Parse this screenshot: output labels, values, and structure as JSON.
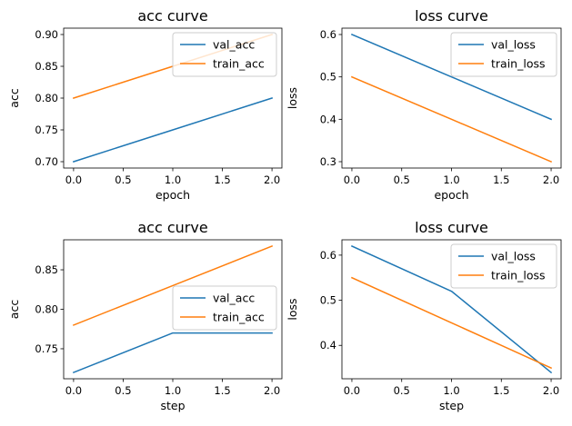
{
  "chart_data": [
    {
      "type": "line",
      "title": "acc curve",
      "xlabel": "epoch",
      "ylabel": "acc",
      "x": [
        0,
        1,
        2
      ],
      "xlim": [
        -0.1,
        2.1
      ],
      "ylim": [
        0.69,
        0.91
      ],
      "xticks": [
        0.0,
        0.5,
        1.0,
        1.5,
        2.0
      ],
      "yticks": [
        0.7,
        0.75,
        0.8,
        0.85,
        0.9
      ],
      "xtick_labels": [
        "0.0",
        "0.5",
        "1.0",
        "1.5",
        "2.0"
      ],
      "ytick_labels": [
        "0.70",
        "0.75",
        "0.80",
        "0.85",
        "0.90"
      ],
      "legend_position": "top-right",
      "grid": false,
      "series": [
        {
          "name": "val_acc",
          "color": "#1f77b4",
          "values": [
            0.7,
            0.75,
            0.8
          ]
        },
        {
          "name": "train_acc",
          "color": "#ff7f0e",
          "values": [
            0.8,
            0.85,
            0.9
          ]
        }
      ]
    },
    {
      "type": "line",
      "title": "loss curve",
      "xlabel": "epoch",
      "ylabel": "loss",
      "x": [
        0,
        1,
        2
      ],
      "xlim": [
        -0.1,
        2.1
      ],
      "ylim": [
        0.285,
        0.615
      ],
      "xticks": [
        0.0,
        0.5,
        1.0,
        1.5,
        2.0
      ],
      "yticks": [
        0.3,
        0.4,
        0.5,
        0.6
      ],
      "xtick_labels": [
        "0.0",
        "0.5",
        "1.0",
        "1.5",
        "2.0"
      ],
      "ytick_labels": [
        "0.3",
        "0.4",
        "0.5",
        "0.6"
      ],
      "legend_position": "top-right",
      "grid": false,
      "series": [
        {
          "name": "val_loss",
          "color": "#1f77b4",
          "values": [
            0.6,
            0.5,
            0.4
          ]
        },
        {
          "name": "train_loss",
          "color": "#ff7f0e",
          "values": [
            0.5,
            0.4,
            0.3
          ]
        }
      ]
    },
    {
      "type": "line",
      "title": "acc curve",
      "xlabel": "step",
      "ylabel": "acc",
      "x": [
        0,
        1,
        2
      ],
      "xlim": [
        -0.1,
        2.1
      ],
      "ylim": [
        0.712,
        0.888
      ],
      "xticks": [
        0.0,
        0.5,
        1.0,
        1.5,
        2.0
      ],
      "yticks": [
        0.75,
        0.8,
        0.85
      ],
      "xtick_labels": [
        "0.0",
        "0.5",
        "1.0",
        "1.5",
        "2.0"
      ],
      "ytick_labels": [
        "0.75",
        "0.80",
        "0.85"
      ],
      "legend_position": "center-right",
      "grid": false,
      "series": [
        {
          "name": "val_acc",
          "color": "#1f77b4",
          "values": [
            0.72,
            0.77,
            0.77
          ]
        },
        {
          "name": "train_acc",
          "color": "#ff7f0e",
          "values": [
            0.78,
            0.83,
            0.88
          ]
        }
      ]
    },
    {
      "type": "line",
      "title": "loss curve",
      "xlabel": "step",
      "ylabel": "loss",
      "x": [
        0,
        1,
        2
      ],
      "xlim": [
        -0.1,
        2.1
      ],
      "ylim": [
        0.326,
        0.634
      ],
      "xticks": [
        0.0,
        0.5,
        1.0,
        1.5,
        2.0
      ],
      "yticks": [
        0.4,
        0.5,
        0.6
      ],
      "xtick_labels": [
        "0.0",
        "0.5",
        "1.0",
        "1.5",
        "2.0"
      ],
      "ytick_labels": [
        "0.4",
        "0.5",
        "0.6"
      ],
      "legend_position": "top-right",
      "grid": false,
      "series": [
        {
          "name": "val_loss",
          "color": "#1f77b4",
          "values": [
            0.62,
            0.52,
            0.34
          ]
        },
        {
          "name": "train_loss",
          "color": "#ff7f0e",
          "values": [
            0.55,
            0.45,
            0.35
          ]
        }
      ]
    }
  ]
}
